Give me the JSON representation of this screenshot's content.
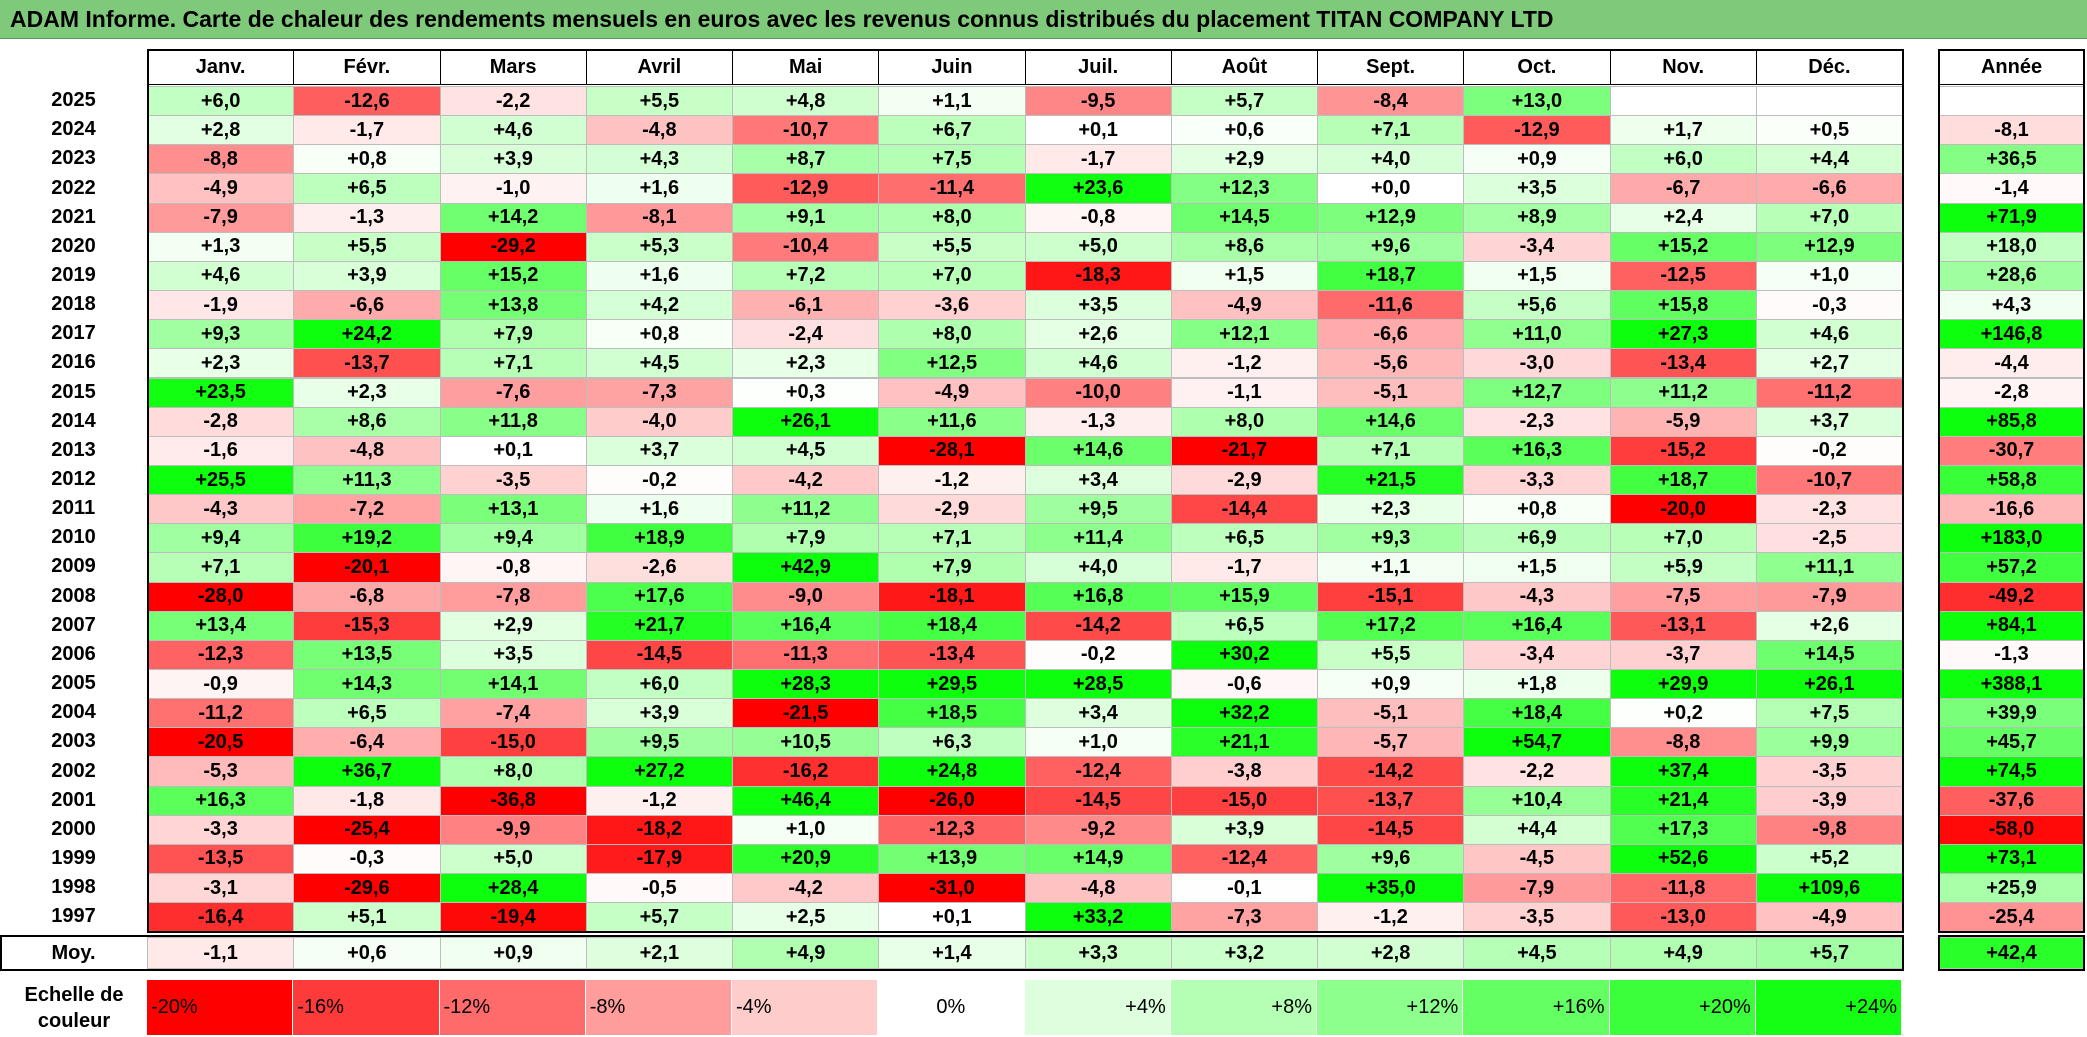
{
  "title": "ADAM Informe. Carte de chaleur des rendements mensuels en euros avec les revenus connus distribués du placement TITAN COMPANY LTD",
  "chart_data": {
    "type": "heatmap",
    "title": "ADAM Informe. Carte de chaleur des rendements mensuels en euros avec les revenus connus distribués du placement TITAN COMPANY LTD",
    "months": [
      "Janv.",
      "Févr.",
      "Mars",
      "Avril",
      "Mai",
      "Juin",
      "Juil.",
      "Août",
      "Sept.",
      "Oct.",
      "Nov.",
      "Déc."
    ],
    "year_header": "Année",
    "rows": [
      {
        "year": "2025",
        "values": [
          "+6,0",
          "-12,6",
          "-2,2",
          "+5,5",
          "+4,8",
          "+1,1",
          "-9,5",
          "+5,7",
          "-8,4",
          "+13,0",
          "",
          ""
        ],
        "annual": ""
      },
      {
        "year": "2024",
        "values": [
          "+2,8",
          "-1,7",
          "+4,6",
          "-4,8",
          "-10,7",
          "+6,7",
          "+0,1",
          "+0,6",
          "+7,1",
          "-12,9",
          "+1,7",
          "+0,5"
        ],
        "annual": "-8,1"
      },
      {
        "year": "2023",
        "values": [
          "-8,8",
          "+0,8",
          "+3,9",
          "+4,3",
          "+8,7",
          "+7,5",
          "-1,7",
          "+2,9",
          "+4,0",
          "+0,9",
          "+6,0",
          "+4,4"
        ],
        "annual": "+36,5"
      },
      {
        "year": "2022",
        "values": [
          "-4,9",
          "+6,5",
          "-1,0",
          "+1,6",
          "-12,9",
          "-11,4",
          "+23,6",
          "+12,3",
          "+0,0",
          "+3,5",
          "-6,7",
          "-6,6"
        ],
        "annual": "-1,4"
      },
      {
        "year": "2021",
        "values": [
          "-7,9",
          "-1,3",
          "+14,2",
          "-8,1",
          "+9,1",
          "+8,0",
          "-0,8",
          "+14,5",
          "+12,9",
          "+8,9",
          "+2,4",
          "+7,0"
        ],
        "annual": "+71,9"
      },
      {
        "year": "2020",
        "values": [
          "+1,3",
          "+5,5",
          "-29,2",
          "+5,3",
          "-10,4",
          "+5,5",
          "+5,0",
          "+8,6",
          "+9,6",
          "-3,4",
          "+15,2",
          "+12,9"
        ],
        "annual": "+18,0"
      },
      {
        "year": "2019",
        "values": [
          "+4,6",
          "+3,9",
          "+15,2",
          "+1,6",
          "+7,2",
          "+7,0",
          "-18,3",
          "+1,5",
          "+18,7",
          "+1,5",
          "-12,5",
          "+1,0"
        ],
        "annual": "+28,6"
      },
      {
        "year": "2018",
        "values": [
          "-1,9",
          "-6,6",
          "+13,8",
          "+4,2",
          "-6,1",
          "-3,6",
          "+3,5",
          "-4,9",
          "-11,6",
          "+5,6",
          "+15,8",
          "-0,3"
        ],
        "annual": "+4,3"
      },
      {
        "year": "2017",
        "values": [
          "+9,3",
          "+24,2",
          "+7,9",
          "+0,8",
          "-2,4",
          "+8,0",
          "+2,6",
          "+12,1",
          "-6,6",
          "+11,0",
          "+27,3",
          "+4,6"
        ],
        "annual": "+146,8"
      },
      {
        "year": "2016",
        "values": [
          "+2,3",
          "-13,7",
          "+7,1",
          "+4,5",
          "+2,3",
          "+12,5",
          "+4,6",
          "-1,2",
          "-5,6",
          "-3,0",
          "-13,4",
          "+2,7"
        ],
        "annual": "-4,4"
      },
      {
        "year": "2015",
        "values": [
          "+23,5",
          "+2,3",
          "-7,6",
          "-7,3",
          "+0,3",
          "-4,9",
          "-10,0",
          "-1,1",
          "-5,1",
          "+12,7",
          "+11,2",
          "-11,2"
        ],
        "annual": "-2,8"
      },
      {
        "year": "2014",
        "values": [
          "-2,8",
          "+8,6",
          "+11,8",
          "-4,0",
          "+26,1",
          "+11,6",
          "-1,3",
          "+8,0",
          "+14,6",
          "-2,3",
          "-5,9",
          "+3,7"
        ],
        "annual": "+85,8"
      },
      {
        "year": "2013",
        "values": [
          "-1,6",
          "-4,8",
          "+0,1",
          "+3,7",
          "+4,5",
          "-28,1",
          "+14,6",
          "-21,7",
          "+7,1",
          "+16,3",
          "-15,2",
          "-0,2"
        ],
        "annual": "-30,7"
      },
      {
        "year": "2012",
        "values": [
          "+25,5",
          "+11,3",
          "-3,5",
          "-0,2",
          "-4,2",
          "-1,2",
          "+3,4",
          "-2,9",
          "+21,5",
          "-3,3",
          "+18,7",
          "-10,7"
        ],
        "annual": "+58,8"
      },
      {
        "year": "2011",
        "values": [
          "-4,3",
          "-7,2",
          "+13,1",
          "+1,6",
          "+11,2",
          "-2,9",
          "+9,5",
          "-14,4",
          "+2,3",
          "+0,8",
          "-20,0",
          "-2,3"
        ],
        "annual": "-16,6"
      },
      {
        "year": "2010",
        "values": [
          "+9,4",
          "+19,2",
          "+9,4",
          "+18,9",
          "+7,9",
          "+7,1",
          "+11,4",
          "+6,5",
          "+9,3",
          "+6,9",
          "+7,0",
          "-2,5"
        ],
        "annual": "+183,0"
      },
      {
        "year": "2009",
        "values": [
          "+7,1",
          "-20,1",
          "-0,8",
          "-2,6",
          "+42,9",
          "+7,9",
          "+4,0",
          "-1,7",
          "+1,1",
          "+1,5",
          "+5,9",
          "+11,1"
        ],
        "annual": "+57,2"
      },
      {
        "year": "2008",
        "values": [
          "-28,0",
          "-6,8",
          "-7,8",
          "+17,6",
          "-9,0",
          "-18,1",
          "+16,8",
          "+15,9",
          "-15,1",
          "-4,3",
          "-7,5",
          "-7,9"
        ],
        "annual": "-49,2"
      },
      {
        "year": "2007",
        "values": [
          "+13,4",
          "-15,3",
          "+2,9",
          "+21,7",
          "+16,4",
          "+18,4",
          "-14,2",
          "+6,5",
          "+17,2",
          "+16,4",
          "-13,1",
          "+2,6"
        ],
        "annual": "+84,1"
      },
      {
        "year": "2006",
        "values": [
          "-12,3",
          "+13,5",
          "+3,5",
          "-14,5",
          "-11,3",
          "-13,4",
          "-0,2",
          "+30,2",
          "+5,5",
          "-3,4",
          "-3,7",
          "+14,5"
        ],
        "annual": "-1,3"
      },
      {
        "year": "2005",
        "values": [
          "-0,9",
          "+14,3",
          "+14,1",
          "+6,0",
          "+28,3",
          "+29,5",
          "+28,5",
          "-0,6",
          "+0,9",
          "+1,8",
          "+29,9",
          "+26,1"
        ],
        "annual": "+388,1"
      },
      {
        "year": "2004",
        "values": [
          "-11,2",
          "+6,5",
          "-7,4",
          "+3,9",
          "-21,5",
          "+18,5",
          "+3,4",
          "+32,2",
          "-5,1",
          "+18,4",
          "+0,2",
          "+7,5"
        ],
        "annual": "+39,9"
      },
      {
        "year": "2003",
        "values": [
          "-20,5",
          "-6,4",
          "-15,0",
          "+9,5",
          "+10,5",
          "+6,3",
          "+1,0",
          "+21,1",
          "-5,7",
          "+54,7",
          "-8,8",
          "+9,9"
        ],
        "annual": "+45,7"
      },
      {
        "year": "2002",
        "values": [
          "-5,3",
          "+36,7",
          "+8,0",
          "+27,2",
          "-16,2",
          "+24,8",
          "-12,4",
          "-3,8",
          "-14,2",
          "-2,2",
          "+37,4",
          "-3,5"
        ],
        "annual": "+74,5"
      },
      {
        "year": "2001",
        "values": [
          "+16,3",
          "-1,8",
          "-36,8",
          "-1,2",
          "+46,4",
          "-26,0",
          "-14,5",
          "-15,0",
          "-13,7",
          "+10,4",
          "+21,4",
          "-3,9"
        ],
        "annual": "-37,6"
      },
      {
        "year": "2000",
        "values": [
          "-3,3",
          "-25,4",
          "-9,9",
          "-18,2",
          "+1,0",
          "-12,3",
          "-9,2",
          "+3,9",
          "-14,5",
          "+4,4",
          "+17,3",
          "-9,8"
        ],
        "annual": "-58,0"
      },
      {
        "year": "1999",
        "values": [
          "-13,5",
          "-0,3",
          "+5,0",
          "-17,9",
          "+20,9",
          "+13,9",
          "+14,9",
          "-12,4",
          "+9,6",
          "-4,5",
          "+52,6",
          "+5,2"
        ],
        "annual": "+73,1"
      },
      {
        "year": "1998",
        "values": [
          "-3,1",
          "-29,6",
          "+28,4",
          "-0,5",
          "-4,2",
          "-31,0",
          "-4,8",
          "-0,1",
          "+35,0",
          "-7,9",
          "-11,8",
          "+109,6"
        ],
        "annual": "+25,9"
      },
      {
        "year": "1997",
        "values": [
          "-16,4",
          "+5,1",
          "-19,4",
          "+5,7",
          "+2,5",
          "+0,1",
          "+33,2",
          "-7,3",
          "-1,2",
          "-3,5",
          "-13,0",
          "-4,9"
        ],
        "annual": "-25,4"
      }
    ],
    "average": {
      "label": "Moy.",
      "values": [
        "-1,1",
        "+0,6",
        "+0,9",
        "+2,1",
        "+4,9",
        "+1,4",
        "+3,3",
        "+3,2",
        "+2,8",
        "+4,5",
        "+4,9",
        "+5,7"
      ],
      "annual": "+42,4"
    },
    "color_scale": {
      "label": "Echelle de couleur",
      "stops": [
        "-20%",
        "-16%",
        "-12%",
        "-8%",
        "-4%",
        "0%",
        "+4%",
        "+8%",
        "+12%",
        "+16%",
        "+20%",
        "+24%"
      ],
      "colors": [
        "#ff0000",
        "#ff3a3a",
        "#ff6b6b",
        "#ff9c9c",
        "#ffcccc",
        "#ffffff",
        "#ddffdd",
        "#b5ffb5",
        "#8cff8c",
        "#63ff63",
        "#3bff3b",
        "#14ff14"
      ]
    },
    "colors": {
      "negative": "#ff0000",
      "zero": "#ffffff",
      "positive": "#00ff00",
      "title_bar": "#7fc97a"
    }
  }
}
